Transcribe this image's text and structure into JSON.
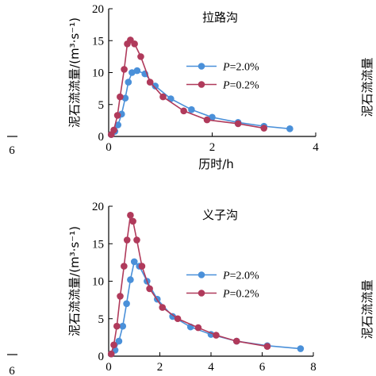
{
  "chart_data": [
    {
      "type": "line",
      "title": "拉路沟",
      "xlabel": "历时/h",
      "ylabel": "泥石流流量/(m³·s⁻¹)",
      "xlim": [
        0,
        4
      ],
      "ylim": [
        0,
        20
      ],
      "xticks": [
        "0",
        "2",
        "4"
      ],
      "yticks": [
        "0",
        "5",
        "10",
        "15",
        "20"
      ],
      "legend": "center-right",
      "series": [
        {
          "name": "P=2.0%",
          "color": "#4a90d9",
          "x": [
            0.05,
            0.12,
            0.18,
            0.25,
            0.32,
            0.38,
            0.45,
            0.55,
            0.7,
            0.9,
            1.2,
            1.6,
            2.0,
            2.5,
            3.0,
            3.5
          ],
          "y": [
            0.3,
            0.8,
            1.8,
            3.5,
            6.0,
            8.5,
            10.0,
            10.3,
            9.8,
            7.9,
            5.9,
            4.2,
            3.0,
            2.2,
            1.6,
            1.2
          ]
        },
        {
          "name": "P=0.2%",
          "color": "#b03a5b",
          "x": [
            0.05,
            0.1,
            0.17,
            0.22,
            0.3,
            0.36,
            0.42,
            0.5,
            0.62,
            0.8,
            1.05,
            1.45,
            1.9,
            2.5,
            3.0
          ],
          "y": [
            0.3,
            1.0,
            3.3,
            6.2,
            10.5,
            14.5,
            15.1,
            14.5,
            12.5,
            8.5,
            6.2,
            4.0,
            2.6,
            2.0,
            1.3
          ]
        }
      ]
    },
    {
      "type": "line",
      "title": "义子沟",
      "xlabel": "历时/h",
      "ylabel": "泥石流流量/(m³·s⁻¹)",
      "xlim": [
        0,
        8
      ],
      "ylim": [
        0,
        20
      ],
      "xticks": [
        "0",
        "2",
        "4",
        "6",
        "8"
      ],
      "yticks": [
        "0",
        "5",
        "10",
        "15",
        "20"
      ],
      "legend": "center-right",
      "series": [
        {
          "name": "P=2.0%",
          "color": "#4a90d9",
          "x": [
            0.1,
            0.25,
            0.4,
            0.55,
            0.7,
            0.85,
            1.0,
            1.2,
            1.5,
            1.9,
            2.5,
            3.2,
            4.0,
            5.0,
            6.2,
            7.5
          ],
          "y": [
            0.3,
            0.8,
            2.0,
            4.0,
            7.0,
            10.2,
            12.6,
            12.0,
            10.0,
            7.6,
            5.3,
            3.9,
            2.9,
            2.0,
            1.4,
            1.0
          ]
        },
        {
          "name": "P=0.2%",
          "color": "#b03a5b",
          "x": [
            0.1,
            0.2,
            0.32,
            0.45,
            0.6,
            0.72,
            0.85,
            0.95,
            1.1,
            1.3,
            1.6,
            2.1,
            2.7,
            3.5,
            4.2,
            5.0,
            6.2
          ],
          "y": [
            0.3,
            1.5,
            4.0,
            8.0,
            12.0,
            15.5,
            18.8,
            18.0,
            15.5,
            12.0,
            9.0,
            6.5,
            5.0,
            3.8,
            2.8,
            2.0,
            1.3
          ]
        }
      ]
    }
  ],
  "left_edge_ticks": [
    "6",
    "6"
  ],
  "right_edge_labels": [
    "泥石流流量",
    "泥石流流量"
  ]
}
